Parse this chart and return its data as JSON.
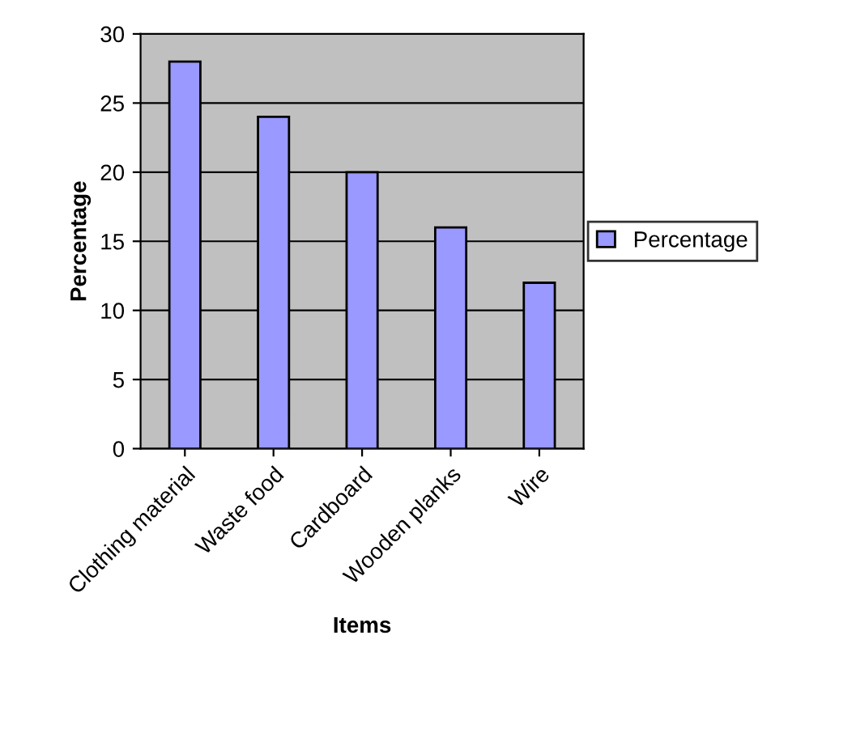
{
  "chart_data": {
    "type": "bar",
    "xlabel": "Items",
    "ylabel": "Percentage",
    "categories": [
      "Clothing material",
      "Waste food",
      "Cardboard",
      "Wooden planks",
      "Wire"
    ],
    "series": [
      {
        "name": "Percentage",
        "color": "#9999ff",
        "values": [
          28,
          24,
          20,
          16,
          12
        ]
      }
    ],
    "ylim": [
      0,
      30
    ],
    "yticks": [
      0,
      5,
      10,
      15,
      20,
      25,
      30
    ],
    "grid": "y",
    "legend": "right"
  }
}
